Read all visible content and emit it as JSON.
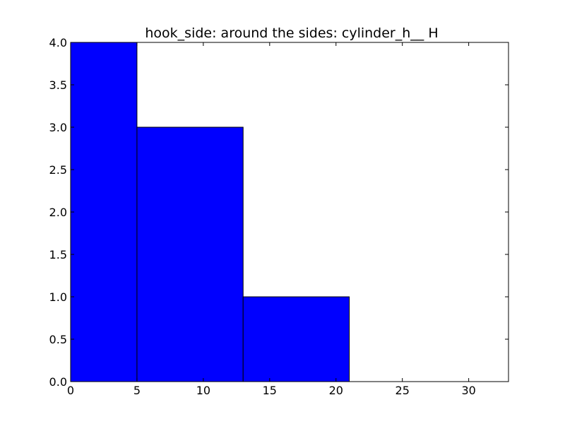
{
  "chart_data": {
    "type": "bar",
    "title": "hook_side: around the sides: cylinder_h__ H",
    "xlabel": "",
    "ylabel": "",
    "xlim": [
      0,
      33
    ],
    "ylim": [
      0,
      4.0
    ],
    "grid": false,
    "bars": [
      {
        "x_start": 0,
        "x_end": 5,
        "value": 4
      },
      {
        "x_start": 5,
        "x_end": 13,
        "value": 3
      },
      {
        "x_start": 13,
        "x_end": 21,
        "value": 1
      }
    ],
    "x_ticks": [
      0,
      5,
      10,
      15,
      20,
      25,
      30
    ],
    "x_tick_labels": [
      "0",
      "5",
      "10",
      "15",
      "20",
      "25",
      "30"
    ],
    "y_ticks": [
      0,
      0.5,
      1.0,
      1.5,
      2.0,
      2.5,
      3.0,
      3.5,
      4.0
    ],
    "y_tick_labels": [
      "0.0",
      "0.5",
      "1.0",
      "1.5",
      "2.0",
      "2.5",
      "3.0",
      "3.5",
      "4.0"
    ],
    "colors": {
      "bar_fill": "#0000ff",
      "bar_edge": "#000000",
      "axes": "#000000",
      "background": "#ffffff"
    }
  }
}
